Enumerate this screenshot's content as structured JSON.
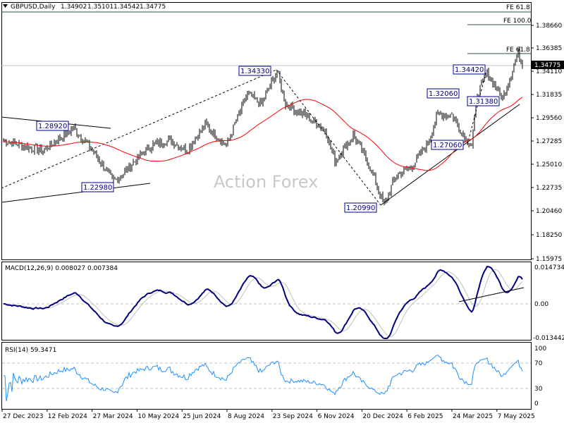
{
  "header": {
    "symbol_label": "GBPUSD,Daily",
    "open": "1.34902",
    "high": "1.35101",
    "low": "1.34542",
    "close": "1.34775"
  },
  "watermark": "Action Forex",
  "price_axis": {
    "ticks": [
      "1.38660",
      "1.36385",
      "1.34110",
      "1.31835",
      "1.29560",
      "1.27285",
      "1.25010",
      "1.22735",
      "1.20460",
      "1.18250",
      "1.15975"
    ],
    "current": "1.34775"
  },
  "fib_levels": [
    "FE 61.8",
    "FE 100.0",
    "FE 61.8"
  ],
  "annotations": [
    "1.28920",
    "1.22980",
    "1.34330",
    "1.20990",
    "1.27060",
    "1.32060",
    "1.31380",
    "1.34420"
  ],
  "macd": {
    "label": "MACD(12,26,9) 0.008027 0.007384",
    "ticks": [
      "0.014734",
      "0.00",
      "-0.013442"
    ]
  },
  "rsi": {
    "label": "RSI(14) 59.3471",
    "ticks": [
      "100",
      "70",
      "30",
      "0"
    ]
  },
  "date_axis": [
    "27 Dec 2023",
    "12 Feb 2024",
    "27 Mar 2024",
    "10 May 2024",
    "25 Jun 2024",
    "8 Aug 2024",
    "23 Sep 2024",
    "6 Nov 2024",
    "20 Dec 2024",
    "6 Feb 2025",
    "24 Mar 2025",
    "7 May 2025"
  ],
  "colors": {
    "bars": "#000000",
    "ma": "#ff0000",
    "macd": "#000080",
    "signal": "#c0c0c0",
    "rsi": "#1e90ff",
    "label": "#00008b",
    "current_price_bg": "#000000"
  },
  "price_path": [
    [
      0,
      1.275
    ],
    [
      13,
      1.27
    ],
    [
      28,
      1.265
    ],
    [
      38,
      1.275
    ],
    [
      50,
      1.287
    ],
    [
      63,
      1.265
    ],
    [
      78,
      1.235
    ],
    [
      83,
      1.24
    ],
    [
      93,
      1.255
    ],
    [
      105,
      1.27
    ],
    [
      118,
      1.275
    ],
    [
      130,
      1.265
    ],
    [
      143,
      1.29
    ],
    [
      158,
      1.27
    ],
    [
      173,
      1.32
    ],
    [
      183,
      1.31
    ],
    [
      194,
      1.342
    ],
    [
      200,
      1.31
    ],
    [
      213,
      1.3
    ],
    [
      228,
      1.285
    ],
    [
      235,
      1.255
    ],
    [
      248,
      1.28
    ],
    [
      258,
      1.255
    ],
    [
      270,
      1.212
    ],
    [
      278,
      1.24
    ],
    [
      290,
      1.25
    ],
    [
      300,
      1.27
    ],
    [
      308,
      1.3
    ],
    [
      318,
      1.3
    ],
    [
      328,
      1.275
    ],
    [
      332,
      1.27
    ],
    [
      336,
      1.32
    ],
    [
      343,
      1.34
    ],
    [
      348,
      1.33
    ],
    [
      354,
      1.315
    ],
    [
      360,
      1.34
    ],
    [
      365,
      1.36
    ],
    [
      368,
      1.348
    ]
  ]
}
